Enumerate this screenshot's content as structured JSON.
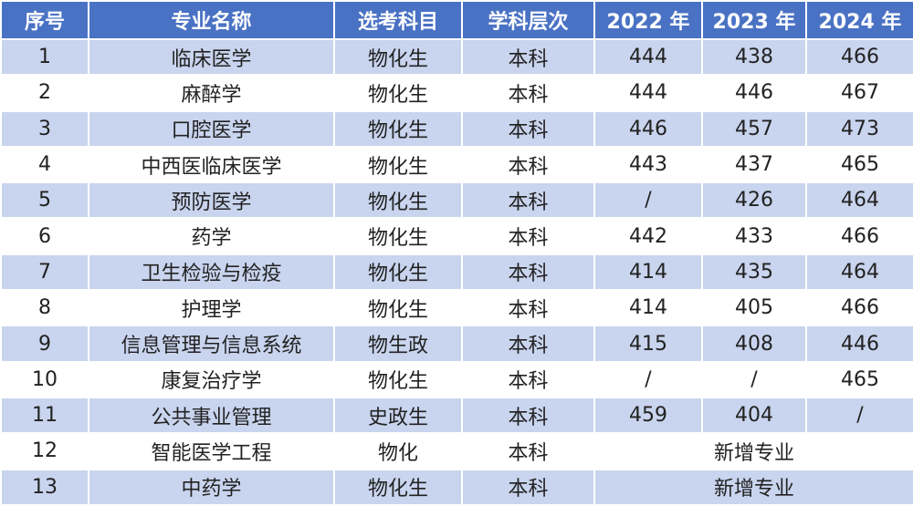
{
  "table": {
    "header": [
      "序号",
      "专业名称",
      "选考科目",
      "学科层次",
      "2022 年",
      "2023 年",
      "2024 年"
    ],
    "rows": [
      [
        "1",
        "临床医学",
        "物化生",
        "本科",
        "444",
        "438",
        "466"
      ],
      [
        "2",
        "麻醉学",
        "物化生",
        "本科",
        "444",
        "446",
        "467"
      ],
      [
        "3",
        "口腔医学",
        "物化生",
        "本科",
        "446",
        "457",
        "473"
      ],
      [
        "4",
        "中西医临床医学",
        "物化生",
        "本科",
        "443",
        "437",
        "465"
      ],
      [
        "5",
        "预防医学",
        "物化生",
        "本科",
        "/",
        "426",
        "464"
      ],
      [
        "6",
        "药学",
        "物化生",
        "本科",
        "442",
        "433",
        "466"
      ],
      [
        "7",
        "卫生检验与检疫",
        "物化生",
        "本科",
        "414",
        "435",
        "464"
      ],
      [
        "8",
        "护理学",
        "物化生",
        "本科",
        "414",
        "405",
        "466"
      ],
      [
        "9",
        "信息管理与信息系统",
        "物生政",
        "本科",
        "415",
        "408",
        "446"
      ],
      [
        "10",
        "康复治疗学",
        "物化生",
        "本科",
        "/",
        "/",
        "465"
      ],
      [
        "11",
        "公共事业管理",
        "史政生",
        "本科",
        "459",
        "404",
        "/"
      ],
      [
        "12",
        "智能医学工程",
        "物化",
        "本科",
        "新增专业"
      ],
      [
        "13",
        "中药学",
        "物化生",
        "本科",
        "新增专业"
      ]
    ]
  }
}
